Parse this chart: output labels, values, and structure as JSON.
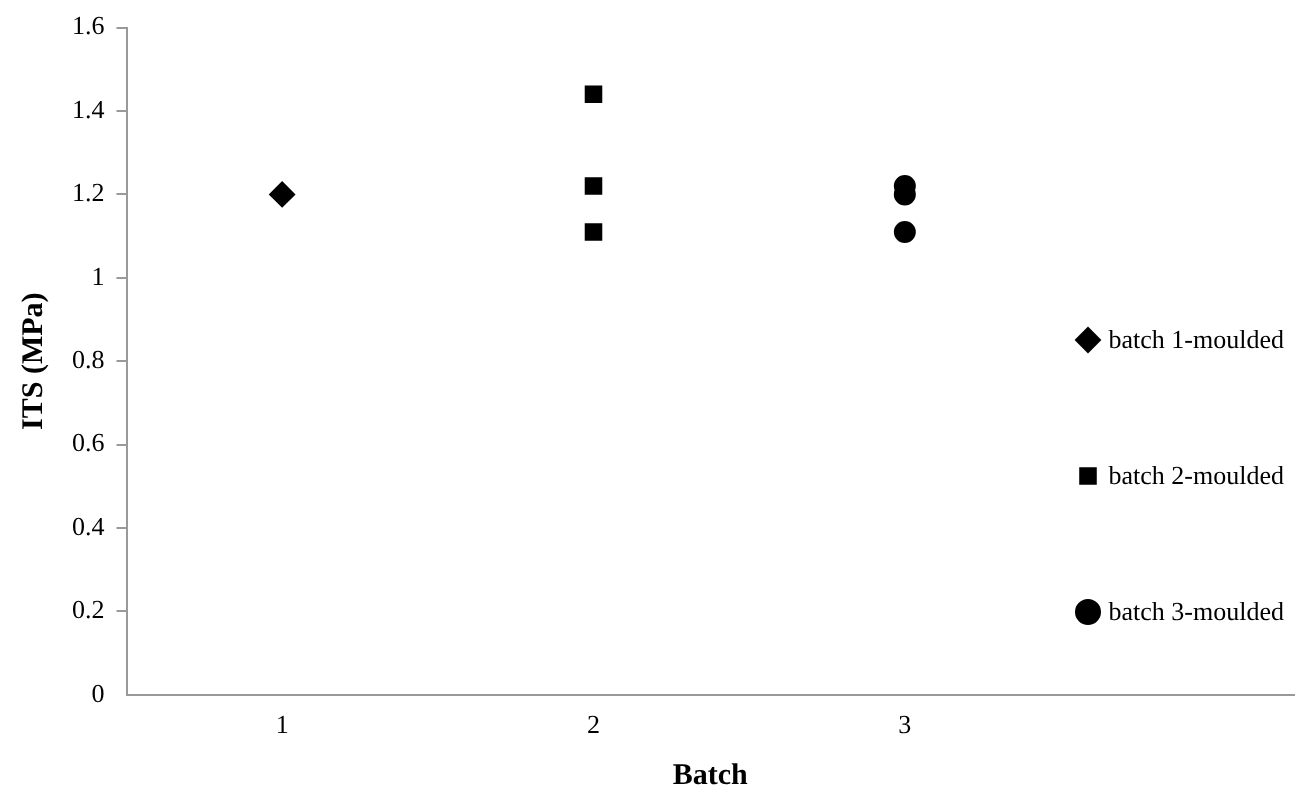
{
  "chart_data": {
    "type": "scatter",
    "xlabel": "Batch",
    "ylabel": "ITS (MPa)",
    "xlim": [
      0.5,
      4.25
    ],
    "xticks": [
      1,
      2,
      3
    ],
    "ylim": [
      0,
      1.6
    ],
    "yticks": [
      0,
      0.2,
      0.4,
      0.6,
      0.8,
      1,
      1.2,
      1.4,
      1.6
    ],
    "grid": false,
    "legend": "right",
    "series": [
      {
        "name": "batch 1-moulded",
        "color": "#000000",
        "marker": "diamond",
        "x": [
          1
        ],
        "values": [
          1.2
        ]
      },
      {
        "name": "batch 2-moulded",
        "color": "#000000",
        "marker": "square",
        "x": [
          2,
          2,
          2
        ],
        "values": [
          1.44,
          1.22,
          1.11
        ]
      },
      {
        "name": "batch 3-moulded",
        "color": "#000000",
        "marker": "circle",
        "x": [
          3,
          3,
          3
        ],
        "values": [
          1.22,
          1.2,
          1.11
        ]
      }
    ]
  }
}
